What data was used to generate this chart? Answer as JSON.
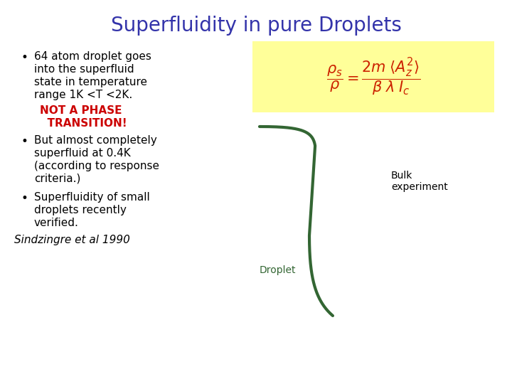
{
  "title": "Superfluidity in pure Droplets",
  "title_color": "#3333aa",
  "title_fontsize": 20,
  "bg_color": "#ffffff",
  "bullet1_line1": "64 atom droplet goes",
  "bullet1_line2": "into the superfluid",
  "bullet1_line3": "state in temperature",
  "bullet1_line4": "range 1K <T <2K.",
  "bullet1_color": "#000000",
  "not_phase": "NOT A PHASE\n  TRANSITION!",
  "not_phase_color": "#cc0000",
  "bullet2_line1": "But almost completely",
  "bullet2_line2": "superfluid at 0.4K",
  "bullet2_line3": "(according to response",
  "bullet2_line4": "criteria.)",
  "bullet2_color": "#000000",
  "bullet3_line1": "Superfluidity of small",
  "bullet3_line2": "droplets recently",
  "bullet3_line3": "verified.",
  "bullet3_color": "#000000",
  "citation": "Sindzingre et al 1990",
  "citation_color": "#000000",
  "formula_bg": "#ffff99",
  "formula_color": "#cc2200",
  "curve_color": "#336633",
  "curve_linewidth": 3.0,
  "bulk_label": "Bulk\nexperiment",
  "bulk_label_color": "#000000",
  "bulk_label_fontsize": 10,
  "droplet_label": "Droplet",
  "droplet_label_color": "#336633",
  "droplet_label_fontsize": 10,
  "text_fontsize": 11
}
